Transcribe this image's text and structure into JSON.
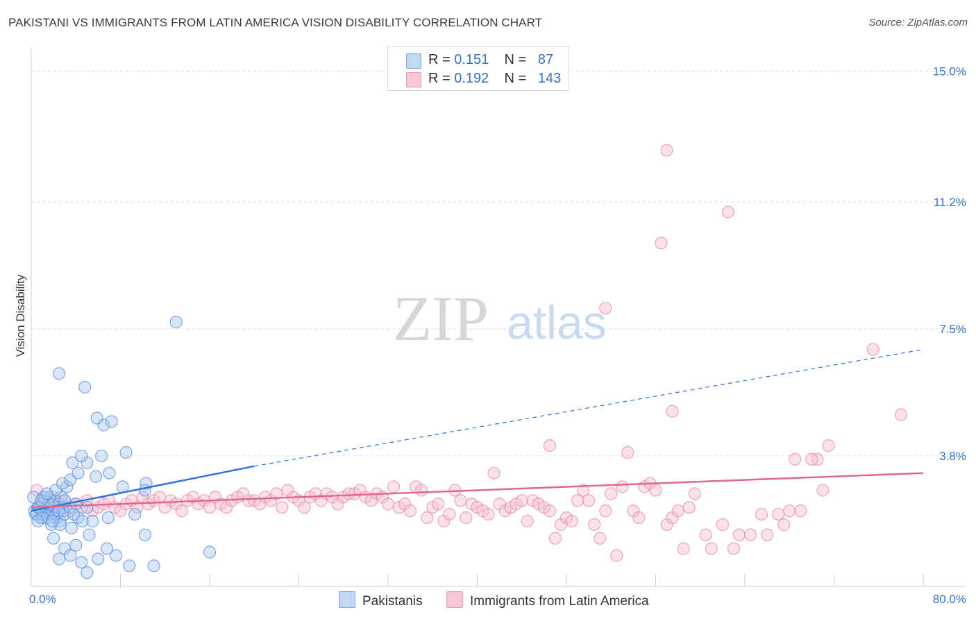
{
  "header": {
    "title": "PAKISTANI VS IMMIGRANTS FROM LATIN AMERICA VISION DISABILITY CORRELATION CHART",
    "source": "Source: ZipAtlas.com"
  },
  "watermark": {
    "zip": "ZIP",
    "atlas": "atlas"
  },
  "legend": {
    "rows": [
      {
        "r_label": "R =",
        "r_value": "0.151",
        "n_label": "N =",
        "n_value": "87"
      },
      {
        "r_label": "R =",
        "r_value": "0.192",
        "n_label": "N =",
        "n_value": "143"
      }
    ]
  },
  "bottom_legend": {
    "pakistanis": "Pakistanis",
    "latin": "Immigrants from Latin America"
  },
  "colors": {
    "pakistanis_fill": "#a9c8f0",
    "pakistanis_stroke": "#5b8fd9",
    "pakistanis_line": "#2f73d6",
    "latin_fill": "#f7bcd0",
    "latin_stroke": "#e48aa8",
    "latin_line": "#e0688f",
    "grid": "#dddddd",
    "axis_label": "#3a6fc4"
  },
  "chart_data": {
    "type": "scatter",
    "title": "PAKISTANI VS IMMIGRANTS FROM LATIN AMERICA VISION DISABILITY CORRELATION CHART",
    "xlabel": "",
    "ylabel": "Vision Disability",
    "xlim": [
      0,
      80
    ],
    "ylim": [
      0,
      15.5
    ],
    "y_ticks": [
      3.8,
      7.5,
      11.2,
      15.0
    ],
    "y_tick_labels": [
      "3.8%",
      "7.5%",
      "11.2%",
      "15.0%"
    ],
    "x_tick_labels": [
      "0.0%",
      "80.0%"
    ],
    "grid": true,
    "series": [
      {
        "name": "Pakistanis",
        "R": 0.151,
        "N": 87,
        "trend": {
          "x0": 0,
          "y0": 2.2,
          "x1": 20,
          "y1": 3.5,
          "dashed_to_x": 80,
          "dashed_to_y": 6.9
        },
        "points": [
          [
            0.3,
            2.2
          ],
          [
            0.5,
            2.1
          ],
          [
            0.6,
            2.3
          ],
          [
            0.8,
            2.0
          ],
          [
            0.9,
            2.4
          ],
          [
            1.0,
            2.2
          ],
          [
            1.1,
            2.1
          ],
          [
            1.2,
            2.5
          ],
          [
            1.3,
            2.3
          ],
          [
            1.4,
            2.0
          ],
          [
            1.5,
            2.2
          ],
          [
            1.6,
            2.6
          ],
          [
            1.7,
            2.1
          ],
          [
            1.8,
            2.4
          ],
          [
            1.9,
            2.2
          ],
          [
            2.0,
            2.3
          ],
          [
            2.1,
            2.5
          ],
          [
            2.2,
            2.1
          ],
          [
            2.3,
            2.0
          ],
          [
            2.4,
            2.2
          ],
          [
            2.5,
            2.4
          ],
          [
            2.6,
            1.9
          ],
          [
            2.7,
            2.6
          ],
          [
            2.8,
            2.3
          ],
          [
            2.9,
            2.2
          ],
          [
            3.0,
            2.5
          ],
          [
            0.4,
            2.1
          ],
          [
            0.7,
            2.3
          ],
          [
            1.0,
            2.0
          ],
          [
            1.5,
            2.4
          ],
          [
            2.0,
            2.0
          ],
          [
            2.5,
            2.2
          ],
          [
            3.0,
            2.1
          ],
          [
            3.5,
            2.3
          ],
          [
            4.0,
            2.4
          ],
          [
            0.2,
            2.6
          ],
          [
            0.6,
            1.9
          ],
          [
            1.1,
            2.6
          ],
          [
            1.8,
            1.8
          ],
          [
            2.2,
            2.8
          ],
          [
            2.6,
            1.8
          ],
          [
            3.2,
            2.9
          ],
          [
            3.6,
            1.7
          ],
          [
            4.2,
            2.0
          ],
          [
            5.0,
            2.3
          ],
          [
            0.9,
            2.5
          ],
          [
            1.4,
            2.7
          ],
          [
            3.8,
            2.1
          ],
          [
            4.6,
            1.9
          ],
          [
            2.0,
            1.4
          ],
          [
            3.0,
            1.1
          ],
          [
            3.5,
            0.9
          ],
          [
            2.5,
            0.8
          ],
          [
            4.5,
            0.7
          ],
          [
            5.0,
            0.4
          ],
          [
            6.0,
            0.8
          ],
          [
            5.2,
            1.5
          ],
          [
            4.0,
            1.2
          ],
          [
            2.8,
            3.0
          ],
          [
            3.5,
            3.1
          ],
          [
            4.2,
            3.3
          ],
          [
            5.0,
            3.6
          ],
          [
            5.8,
            3.2
          ],
          [
            6.3,
            3.8
          ],
          [
            3.7,
            3.6
          ],
          [
            4.5,
            3.8
          ],
          [
            6.5,
            4.7
          ],
          [
            7.2,
            4.8
          ],
          [
            8.2,
            2.9
          ],
          [
            9.3,
            2.1
          ],
          [
            10.2,
            1.5
          ],
          [
            10.3,
            3.0
          ],
          [
            10.2,
            2.8
          ],
          [
            8.5,
            3.9
          ],
          [
            5.9,
            4.9
          ],
          [
            2.5,
            6.2
          ],
          [
            4.8,
            5.8
          ],
          [
            13.0,
            7.7
          ],
          [
            16.0,
            1.0
          ],
          [
            11.0,
            0.6
          ],
          [
            8.8,
            0.6
          ],
          [
            7.6,
            0.9
          ],
          [
            6.8,
            1.1
          ],
          [
            7.0,
            3.3
          ],
          [
            6.9,
            2.0
          ],
          [
            5.5,
            1.9
          ],
          [
            1.9,
            1.9
          ]
        ]
      },
      {
        "name": "Immigrants from Latin America",
        "R": 0.192,
        "N": 143,
        "trend": {
          "x0": 0,
          "y0": 2.3,
          "x1": 80,
          "y1": 3.3
        },
        "points": [
          [
            0.5,
            2.8
          ],
          [
            1.0,
            2.5
          ],
          [
            1.5,
            2.4
          ],
          [
            2.0,
            2.6
          ],
          [
            2.5,
            2.3
          ],
          [
            3.0,
            2.5
          ],
          [
            3.5,
            2.2
          ],
          [
            4.0,
            2.4
          ],
          [
            4.5,
            2.3
          ],
          [
            5.0,
            2.5
          ],
          [
            5.5,
            2.2
          ],
          [
            6.0,
            2.3
          ],
          [
            6.5,
            2.4
          ],
          [
            7.0,
            2.5
          ],
          [
            7.5,
            2.3
          ],
          [
            8.0,
            2.2
          ],
          [
            8.5,
            2.4
          ],
          [
            9.0,
            2.5
          ],
          [
            9.5,
            2.3
          ],
          [
            10.0,
            2.6
          ],
          [
            10.5,
            2.4
          ],
          [
            11.0,
            2.5
          ],
          [
            11.5,
            2.6
          ],
          [
            12.0,
            2.3
          ],
          [
            12.5,
            2.5
          ],
          [
            13.0,
            2.4
          ],
          [
            13.5,
            2.2
          ],
          [
            14.0,
            2.5
          ],
          [
            14.5,
            2.6
          ],
          [
            15.0,
            2.4
          ],
          [
            15.5,
            2.5
          ],
          [
            16.0,
            2.3
          ],
          [
            16.5,
            2.6
          ],
          [
            17.0,
            2.4
          ],
          [
            17.5,
            2.3
          ],
          [
            18.0,
            2.5
          ],
          [
            18.5,
            2.6
          ],
          [
            19.0,
            2.7
          ],
          [
            19.5,
            2.5
          ],
          [
            20.0,
            2.5
          ],
          [
            20.5,
            2.4
          ],
          [
            21.0,
            2.6
          ],
          [
            21.5,
            2.5
          ],
          [
            22.0,
            2.7
          ],
          [
            22.5,
            2.3
          ],
          [
            23.0,
            2.8
          ],
          [
            23.5,
            2.6
          ],
          [
            24.0,
            2.5
          ],
          [
            24.5,
            2.3
          ],
          [
            25.0,
            2.6
          ],
          [
            25.5,
            2.7
          ],
          [
            26.0,
            2.5
          ],
          [
            26.5,
            2.7
          ],
          [
            27.0,
            2.6
          ],
          [
            27.5,
            2.4
          ],
          [
            28.0,
            2.6
          ],
          [
            28.5,
            2.7
          ],
          [
            29.0,
            2.7
          ],
          [
            29.5,
            2.8
          ],
          [
            30.0,
            2.6
          ],
          [
            30.5,
            2.5
          ],
          [
            31.0,
            2.7
          ],
          [
            31.5,
            2.6
          ],
          [
            32.0,
            2.4
          ],
          [
            32.5,
            2.9
          ],
          [
            33.0,
            2.3
          ],
          [
            33.5,
            2.4
          ],
          [
            34.0,
            2.2
          ],
          [
            34.5,
            2.9
          ],
          [
            35.0,
            2.8
          ],
          [
            35.5,
            2.0
          ],
          [
            36.0,
            2.3
          ],
          [
            36.5,
            2.4
          ],
          [
            37.0,
            1.9
          ],
          [
            37.5,
            2.1
          ],
          [
            38.0,
            2.8
          ],
          [
            38.5,
            2.5
          ],
          [
            39.0,
            2.0
          ],
          [
            39.5,
            2.4
          ],
          [
            40.0,
            2.3
          ],
          [
            40.5,
            2.2
          ],
          [
            41.0,
            2.1
          ],
          [
            41.5,
            3.3
          ],
          [
            42.0,
            2.4
          ],
          [
            42.5,
            2.2
          ],
          [
            43.0,
            2.3
          ],
          [
            43.5,
            2.4
          ],
          [
            44.0,
            2.5
          ],
          [
            44.5,
            1.9
          ],
          [
            45.0,
            2.5
          ],
          [
            45.5,
            2.4
          ],
          [
            46.0,
            2.3
          ],
          [
            46.5,
            2.2
          ],
          [
            47.0,
            1.4
          ],
          [
            47.5,
            1.8
          ],
          [
            48.0,
            2.0
          ],
          [
            48.5,
            1.9
          ],
          [
            49.0,
            2.5
          ],
          [
            49.5,
            2.8
          ],
          [
            50.0,
            2.5
          ],
          [
            50.5,
            1.8
          ],
          [
            51.0,
            1.4
          ],
          [
            51.5,
            2.2
          ],
          [
            52.0,
            2.7
          ],
          [
            52.5,
            0.9
          ],
          [
            53.0,
            2.9
          ],
          [
            53.5,
            3.9
          ],
          [
            54.0,
            2.2
          ],
          [
            54.5,
            2.0
          ],
          [
            55.0,
            2.9
          ],
          [
            55.5,
            3.0
          ],
          [
            56.0,
            2.8
          ],
          [
            57.0,
            1.8
          ],
          [
            57.5,
            2.0
          ],
          [
            58.0,
            2.2
          ],
          [
            58.5,
            1.1
          ],
          [
            59.0,
            2.3
          ],
          [
            59.5,
            2.7
          ],
          [
            60.5,
            1.5
          ],
          [
            61.0,
            1.1
          ],
          [
            62.0,
            1.8
          ],
          [
            63.0,
            1.1
          ],
          [
            63.5,
            1.5
          ],
          [
            64.5,
            1.5
          ],
          [
            65.5,
            2.1
          ],
          [
            66.0,
            1.5
          ],
          [
            67.0,
            2.1
          ],
          [
            67.5,
            1.8
          ],
          [
            68.0,
            2.2
          ],
          [
            69.0,
            2.2
          ],
          [
            70.5,
            3.7
          ],
          [
            71.0,
            2.8
          ],
          [
            71.5,
            4.1
          ],
          [
            70.0,
            3.7
          ],
          [
            68.5,
            3.7
          ],
          [
            57.5,
            5.1
          ],
          [
            51.5,
            8.1
          ],
          [
            56.5,
            10.0
          ],
          [
            57.0,
            12.7
          ],
          [
            62.5,
            10.9
          ],
          [
            75.5,
            6.9
          ],
          [
            78.0,
            5.0
          ],
          [
            46.5,
            4.1
          ]
        ]
      }
    ]
  }
}
